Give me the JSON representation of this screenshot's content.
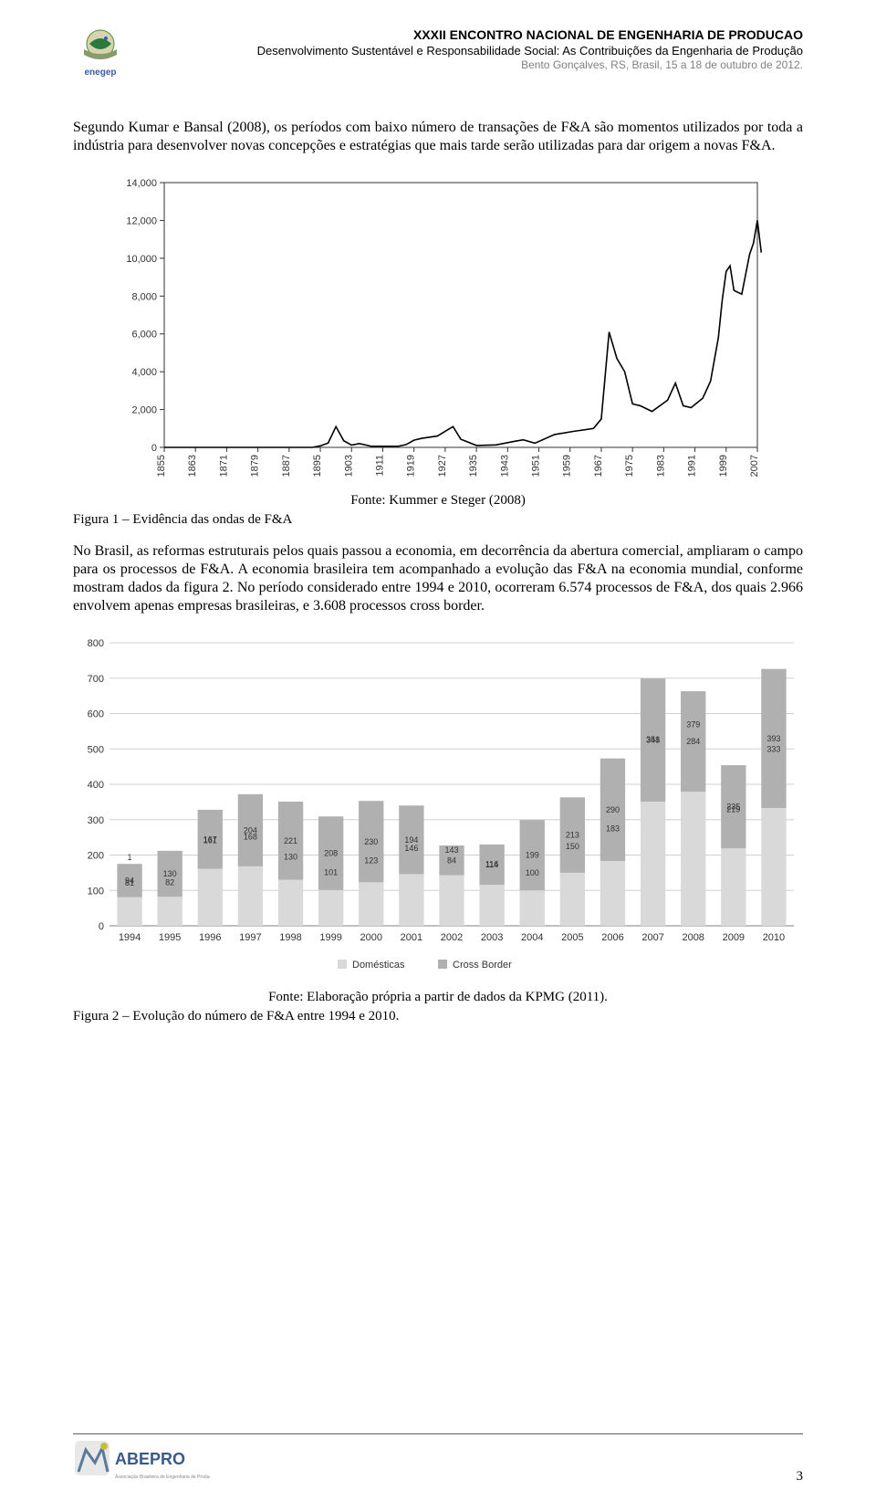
{
  "header": {
    "line1": "XXXII ENCONTRO NACIONAL DE ENGENHARIA DE PRODUCAO",
    "line2": "Desenvolvimento Sustentável e Responsabilidade Social: As Contribuições da Engenharia de Produção",
    "line3": "Bento Gonçalves, RS, Brasil, 15 a 18 de outubro de 2012.",
    "logo_text": "enegep"
  },
  "paragraph1": "Segundo Kumar e Bansal (2008), os períodos com baixo número de transações de F&A são momentos utilizados por toda a indústria para desenvolver novas concepções e estratégias que mais tarde serão utilizadas para dar origem a novas F&A.",
  "chart1": {
    "type": "line",
    "y_ticks": [
      0,
      "2,000",
      "4,000",
      "6,000",
      "8,000",
      "10,000",
      "12,000",
      "14,000"
    ],
    "y_values": [
      0,
      2000,
      4000,
      6000,
      8000,
      10000,
      12000,
      14000
    ],
    "x_ticks": [
      "1855",
      "1863",
      "1871",
      "1879",
      "1887",
      "1895",
      "1903",
      "1911",
      "1919",
      "1927",
      "1935",
      "1943",
      "1951",
      "1959",
      "1967",
      "1975",
      "1983",
      "1991",
      "1999",
      "2007"
    ],
    "x_years": [
      1855,
      1863,
      1871,
      1879,
      1887,
      1895,
      1903,
      1911,
      1919,
      1927,
      1935,
      1943,
      1951,
      1959,
      1967,
      1975,
      1983,
      1991,
      1999,
      2007
    ],
    "series_color": "#000000",
    "line_width": 1.6,
    "background": "#ffffff",
    "frame_color": "#333333",
    "points": [
      [
        1855,
        0
      ],
      [
        1893,
        0
      ],
      [
        1895,
        80
      ],
      [
        1897,
        230
      ],
      [
        1899,
        1100
      ],
      [
        1901,
        350
      ],
      [
        1903,
        120
      ],
      [
        1905,
        200
      ],
      [
        1908,
        60
      ],
      [
        1915,
        60
      ],
      [
        1917,
        150
      ],
      [
        1919,
        380
      ],
      [
        1921,
        480
      ],
      [
        1925,
        600
      ],
      [
        1929,
        1100
      ],
      [
        1931,
        430
      ],
      [
        1935,
        100
      ],
      [
        1940,
        130
      ],
      [
        1945,
        330
      ],
      [
        1947,
        400
      ],
      [
        1950,
        220
      ],
      [
        1955,
        680
      ],
      [
        1960,
        850
      ],
      [
        1965,
        1000
      ],
      [
        1967,
        1500
      ],
      [
        1969,
        6100
      ],
      [
        1971,
        4700
      ],
      [
        1973,
        4000
      ],
      [
        1975,
        2300
      ],
      [
        1977,
        2200
      ],
      [
        1980,
        1900
      ],
      [
        1984,
        2500
      ],
      [
        1986,
        3400
      ],
      [
        1988,
        2200
      ],
      [
        1990,
        2100
      ],
      [
        1993,
        2600
      ],
      [
        1995,
        3500
      ],
      [
        1997,
        5800
      ],
      [
        1998,
        7800
      ],
      [
        1999,
        9300
      ],
      [
        2000,
        9600
      ],
      [
        2001,
        8300
      ],
      [
        2003,
        8100
      ],
      [
        2005,
        10200
      ],
      [
        2006,
        10800
      ],
      [
        2007,
        12000
      ],
      [
        2008,
        10300
      ]
    ]
  },
  "source1": "Fonte: Kummer e Steger (2008)",
  "figcap1": "Figura 1 – Evidência das ondas de F&A",
  "paragraph2": "No Brasil, as reformas estruturais pelos quais passou a economia, em decorrência da abertura comercial, ampliaram o campo para os processos de F&A. A economia brasileira tem acompanhado a evolução das F&A na economia mundial, conforme mostram dados da figura 2. No período considerado entre 1994 e 2010, ocorreram 6.574 processos de F&A, dos quais 2.966 envolvem apenas empresas brasileiras, e 3.608 processos cross border.",
  "chart2": {
    "type": "stacked-bar",
    "y_ticks": [
      0,
      100,
      200,
      300,
      400,
      500,
      600,
      700,
      800
    ],
    "x_cats": [
      "1994",
      "1995",
      "1996",
      "1997",
      "1998",
      "1999",
      "2000",
      "2001",
      "2002",
      "2003",
      "2004",
      "2005",
      "2006",
      "2007",
      "2008",
      "2009",
      "2010"
    ],
    "domestic": [
      81,
      82,
      161,
      168,
      130,
      101,
      123,
      146,
      143,
      116,
      100,
      150,
      183,
      351,
      379,
      219,
      333
    ],
    "cross": [
      94,
      130,
      167,
      204,
      221,
      208,
      230,
      194,
      84,
      114,
      199,
      213,
      290,
      348,
      284,
      235,
      393
    ],
    "extra_label": {
      "year": "1994",
      "value": "1"
    },
    "colors": {
      "domestic": "#d9d9d9",
      "cross": "#b0b0b0"
    },
    "grid_color": "#d0d0d0",
    "axis_color": "#808080",
    "label_fontsize": 9,
    "legend": {
      "left": "Domésticas",
      "right": "Cross Border"
    }
  },
  "source2": "Fonte: Elaboração própria a partir de dados da KPMG (2011).",
  "figcap2": "Figura 2 – Evolução do número de F&A entre 1994 e 2010.",
  "footer": {
    "abepro": "ABEPRO",
    "page": "3"
  }
}
